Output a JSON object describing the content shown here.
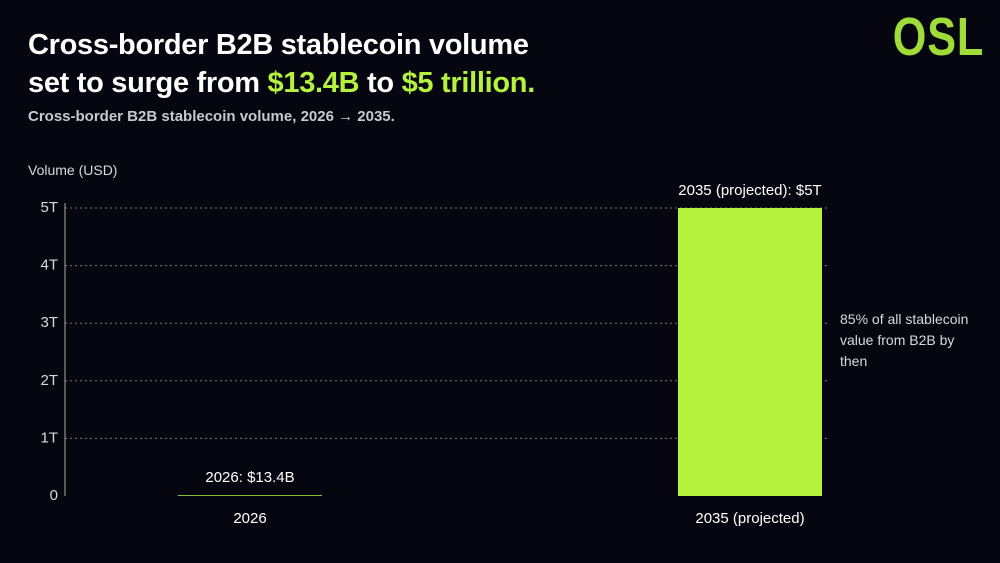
{
  "chart_data": {
    "type": "bar",
    "logo": "OSL",
    "title": {
      "line1": "Cross-border B2B stablecoin volume",
      "line2": [
        "set to surge from",
        "$13.4B",
        "to",
        "$5 trillion."
      ]
    },
    "subtitle": "Cross-border B2B stablecoin volume, 2026 → 2035.",
    "y_label": "Volume (USD)",
    "categories": [
      "2026",
      "2035 (projected)"
    ],
    "values": [
      0.0134,
      5
    ],
    "value_labels": [
      "2026: $13.4B",
      "2035 (projected): $5T"
    ],
    "color": "#b5f23d",
    "ylim": [
      0,
      5
    ],
    "yticks": [
      0,
      {
        "value": 1,
        "label": "1T"
      },
      {
        "value": 2,
        "label": "2T"
      },
      {
        "value": 3,
        "label": "3T"
      },
      {
        "value": 4,
        "label": "4T"
      },
      {
        "value": 5,
        "label": "5T"
      }
    ],
    "grid": true,
    "annotation": "85% of all stablecoin value from B2B by then"
  }
}
